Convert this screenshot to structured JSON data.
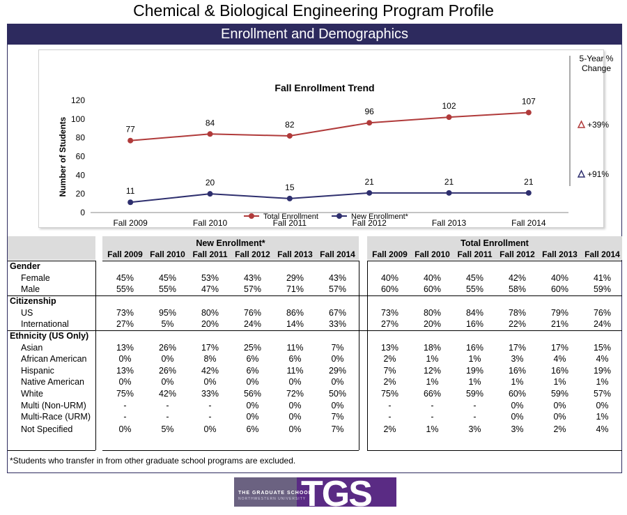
{
  "page_title": "Chemical & Biological Engineering Program Profile",
  "banner": "Enrollment and Demographics",
  "chart_data": {
    "type": "line",
    "title": "Fall Enrollment Trend",
    "ylabel": "Number of Students",
    "xlabel": "",
    "categories": [
      "Fall 2009",
      "Fall 2010",
      "Fall 2011",
      "Fall 2012",
      "Fall 2013",
      "Fall 2014"
    ],
    "ylim": [
      0,
      120
    ],
    "yticks": [
      0,
      20,
      40,
      60,
      80,
      100,
      120
    ],
    "series": [
      {
        "name": "Total Enrollment",
        "color": "#b03a3a",
        "values": [
          77,
          84,
          82,
          96,
          102,
          107
        ],
        "change": "+39%"
      },
      {
        "name": "New Enrollment*",
        "color": "#2e2f6e",
        "values": [
          11,
          20,
          15,
          21,
          21,
          21
        ],
        "change": "+91%"
      }
    ],
    "change_header": [
      "5-Year %",
      "Change"
    ],
    "legend_position": "bottom",
    "grid": false
  },
  "table": {
    "new_title": "New Enrollment*",
    "total_title": "Total Enrollment",
    "years": [
      "Fall 2009",
      "Fall 2010",
      "Fall 2011",
      "Fall 2012",
      "Fall 2013",
      "Fall 2014"
    ],
    "rows": [
      {
        "label": "Gender",
        "type": "section"
      },
      {
        "label": "Female",
        "new": [
          "45%",
          "45%",
          "53%",
          "43%",
          "29%",
          "43%"
        ],
        "total": [
          "40%",
          "40%",
          "45%",
          "42%",
          "40%",
          "41%"
        ]
      },
      {
        "label": "Male",
        "new": [
          "55%",
          "55%",
          "47%",
          "57%",
          "71%",
          "57%"
        ],
        "total": [
          "60%",
          "60%",
          "55%",
          "58%",
          "60%",
          "59%"
        ]
      },
      {
        "label": "Citizenship",
        "type": "section"
      },
      {
        "label": "US",
        "new": [
          "73%",
          "95%",
          "80%",
          "76%",
          "86%",
          "67%"
        ],
        "total": [
          "73%",
          "80%",
          "84%",
          "78%",
          "79%",
          "76%"
        ]
      },
      {
        "label": "International",
        "new": [
          "27%",
          "5%",
          "20%",
          "24%",
          "14%",
          "33%"
        ],
        "total": [
          "27%",
          "20%",
          "16%",
          "22%",
          "21%",
          "24%"
        ]
      },
      {
        "label": "Ethnicity (US Only)",
        "type": "section"
      },
      {
        "label": "Asian",
        "new": [
          "13%",
          "26%",
          "17%",
          "25%",
          "11%",
          "7%"
        ],
        "total": [
          "13%",
          "18%",
          "16%",
          "17%",
          "17%",
          "15%"
        ]
      },
      {
        "label": "African American",
        "new": [
          "0%",
          "0%",
          "8%",
          "6%",
          "6%",
          "0%"
        ],
        "total": [
          "2%",
          "1%",
          "1%",
          "3%",
          "4%",
          "4%"
        ]
      },
      {
        "label": "Hispanic",
        "new": [
          "13%",
          "26%",
          "42%",
          "6%",
          "11%",
          "29%"
        ],
        "total": [
          "7%",
          "12%",
          "19%",
          "16%",
          "16%",
          "19%"
        ]
      },
      {
        "label": "Native American",
        "new": [
          "0%",
          "0%",
          "0%",
          "0%",
          "0%",
          "0%"
        ],
        "total": [
          "2%",
          "1%",
          "1%",
          "1%",
          "1%",
          "1%"
        ]
      },
      {
        "label": "White",
        "new": [
          "75%",
          "42%",
          "33%",
          "56%",
          "72%",
          "50%"
        ],
        "total": [
          "75%",
          "66%",
          "59%",
          "60%",
          "59%",
          "57%"
        ]
      },
      {
        "label": "Multi (Non-URM)",
        "new": [
          "-",
          "-",
          "-",
          "0%",
          "0%",
          "0%"
        ],
        "total": [
          "-",
          "-",
          "-",
          "0%",
          "0%",
          "0%"
        ]
      },
      {
        "label": "Multi-Race (URM)",
        "new": [
          "-",
          "-",
          "-",
          "0%",
          "0%",
          "7%"
        ],
        "total": [
          "-",
          "-",
          "-",
          "0%",
          "0%",
          "1%"
        ]
      },
      {
        "label": "Not Specified",
        "new": [
          "0%",
          "5%",
          "0%",
          "6%",
          "0%",
          "7%"
        ],
        "total": [
          "2%",
          "1%",
          "3%",
          "3%",
          "2%",
          "4%"
        ]
      }
    ]
  },
  "footnote": "*Students who transfer in from other graduate school programs are excluded.",
  "logo": {
    "big": "TGS",
    "line1": "THE GRADUATE SCHOOL",
    "line2": "NORTHWESTERN UNIVERSITY"
  }
}
